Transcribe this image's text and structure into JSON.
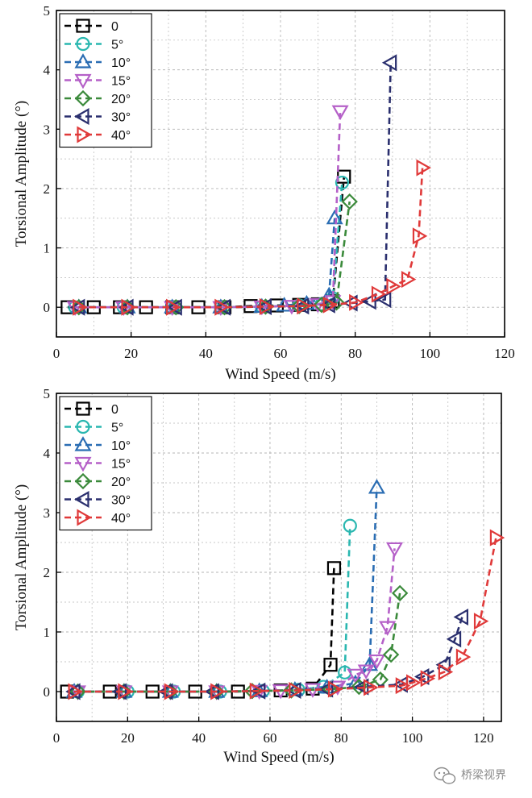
{
  "colors": {
    "s0": "#000000",
    "s5": "#2ab7b0",
    "s10": "#2a6db3",
    "s15": "#b560c8",
    "s20": "#3b8a3b",
    "s30": "#2a2f6e",
    "s40": "#e03a3a",
    "grid": "#b5b5b5"
  },
  "watermark": {
    "icon": "wechat-icon",
    "text": "桥梁视界"
  },
  "chart_data": [
    {
      "type": "line",
      "xlabel": "Wind Speed (m/s)",
      "ylabel": "Torsional Amplitude (°)",
      "xlim": [
        0,
        120
      ],
      "ylim": [
        -0.5,
        5
      ],
      "xticks": [
        0,
        20,
        40,
        60,
        80,
        100,
        120
      ],
      "yticks": [
        0,
        1,
        2,
        3,
        4,
        5
      ],
      "grid": true,
      "legend_position": "top-left",
      "series": [
        {
          "name": "0",
          "marker": "square",
          "color": "#000000",
          "x": [
            3,
            10,
            17,
            24,
            31,
            38,
            45,
            52,
            59,
            65,
            70,
            74,
            77
          ],
          "y": [
            0,
            0,
            0,
            0,
            0,
            0,
            0,
            0.02,
            0.03,
            0.04,
            0.05,
            0.1,
            2.2
          ]
        },
        {
          "name": "5°",
          "marker": "circle",
          "color": "#2ab7b0",
          "x": [
            5,
            18,
            31,
            44,
            55,
            65,
            71,
            74,
            76.5
          ],
          "y": [
            0,
            0,
            0,
            0,
            0.01,
            0.03,
            0.05,
            0.15,
            2.1
          ]
        },
        {
          "name": "10°",
          "marker": "triangle-up",
          "color": "#2a6db3",
          "x": [
            6,
            19,
            31,
            44,
            55,
            61,
            67,
            73,
            74.5
          ],
          "y": [
            0,
            0,
            0,
            0,
            0.01,
            0.03,
            0.06,
            0.2,
            1.5
          ]
        },
        {
          "name": "15°",
          "marker": "triangle-down",
          "color": "#b560c8",
          "x": [
            5,
            18,
            31,
            44,
            55,
            63,
            70,
            74,
            76
          ],
          "y": [
            0,
            0,
            0,
            0,
            0.01,
            0.02,
            0.05,
            0.1,
            3.3
          ]
        },
        {
          "name": "20°",
          "marker": "diamond",
          "color": "#3b8a3b",
          "x": [
            6,
            19,
            32,
            45,
            56,
            65,
            71,
            75,
            78.5
          ],
          "y": [
            0,
            0,
            0,
            0,
            0.01,
            0.02,
            0.04,
            0.08,
            1.78
          ]
        },
        {
          "name": "30°",
          "marker": "triangle-left",
          "color": "#2a2f6e",
          "x": [
            6,
            19,
            32,
            45,
            56,
            66,
            73,
            79,
            84,
            88,
            89.5
          ],
          "y": [
            0,
            0,
            0,
            0,
            0.01,
            0.02,
            0.04,
            0.07,
            0.1,
            0.13,
            4.12
          ]
        },
        {
          "name": "40°",
          "marker": "triangle-right",
          "color": "#e03a3a",
          "x": [
            6,
            19,
            31,
            44,
            56,
            66,
            73,
            80,
            86,
            90,
            94,
            97,
            98
          ],
          "y": [
            0,
            0,
            0,
            0,
            0.01,
            0.02,
            0.04,
            0.08,
            0.22,
            0.35,
            0.47,
            1.2,
            2.35
          ]
        }
      ]
    },
    {
      "type": "line",
      "xlabel": "Wind Speed (m/s)",
      "ylabel": "Torsional Amplitude (°)",
      "xlim": [
        0,
        125
      ],
      "ylim": [
        -0.5,
        5
      ],
      "xticks": [
        0,
        20,
        40,
        60,
        80,
        100,
        120
      ],
      "yticks": [
        0,
        1,
        2,
        3,
        4,
        5
      ],
      "grid": true,
      "legend_position": "top-left",
      "series": [
        {
          "name": "0",
          "marker": "square",
          "color": "#000000",
          "x": [
            3,
            15,
            27,
            39,
            51,
            63,
            72,
            77,
            78
          ],
          "y": [
            0,
            0,
            0,
            0,
            0,
            0.02,
            0.05,
            0.45,
            2.07
          ]
        },
        {
          "name": "5°",
          "marker": "circle",
          "color": "#2ab7b0",
          "x": [
            6,
            20,
            33,
            46,
            58,
            68,
            75,
            81,
            82.5
          ],
          "y": [
            0,
            0,
            0,
            0,
            0.01,
            0.03,
            0.08,
            0.32,
            2.78
          ]
        },
        {
          "name": "10°",
          "marker": "triangle-up",
          "color": "#2a6db3",
          "x": [
            5,
            19,
            32,
            45,
            57,
            67,
            76,
            84,
            88,
            90
          ],
          "y": [
            0,
            0,
            0,
            0,
            0.01,
            0.03,
            0.07,
            0.14,
            0.45,
            3.42
          ]
        },
        {
          "name": "15°",
          "marker": "triangle-down",
          "color": "#b560c8",
          "x": [
            6,
            19,
            32,
            45,
            57,
            63,
            72,
            79,
            84,
            87,
            90,
            93,
            95
          ],
          "y": [
            0,
            0,
            0,
            0,
            0.01,
            0.02,
            0.04,
            0.08,
            0.28,
            0.35,
            0.52,
            1.08,
            2.4
          ]
        },
        {
          "name": "20°",
          "marker": "diamond",
          "color": "#3b8a3b",
          "x": [
            6,
            19,
            32,
            45,
            55,
            66,
            77,
            85,
            91,
            94,
            96.5
          ],
          "y": [
            0,
            0,
            0,
            0,
            0.01,
            0.02,
            0.04,
            0.08,
            0.2,
            0.62,
            1.65
          ]
        },
        {
          "name": "30°",
          "marker": "triangle-left",
          "color": "#2a2f6e",
          "x": [
            5,
            18,
            31,
            44,
            57,
            67,
            76,
            86,
            97,
            103,
            109,
            112,
            114
          ],
          "y": [
            0,
            0,
            0,
            0,
            0.01,
            0.02,
            0.04,
            0.08,
            0.12,
            0.25,
            0.45,
            0.88,
            1.25
          ]
        },
        {
          "name": "40°",
          "marker": "triangle-right",
          "color": "#e03a3a",
          "x": [
            5,
            19,
            32,
            45,
            56,
            67,
            78,
            88,
            97,
            100,
            104,
            109,
            114,
            119,
            123.5
          ],
          "y": [
            0,
            0,
            0,
            0,
            0.01,
            0.02,
            0.04,
            0.07,
            0.1,
            0.15,
            0.22,
            0.33,
            0.58,
            1.18,
            2.58
          ]
        }
      ]
    }
  ]
}
